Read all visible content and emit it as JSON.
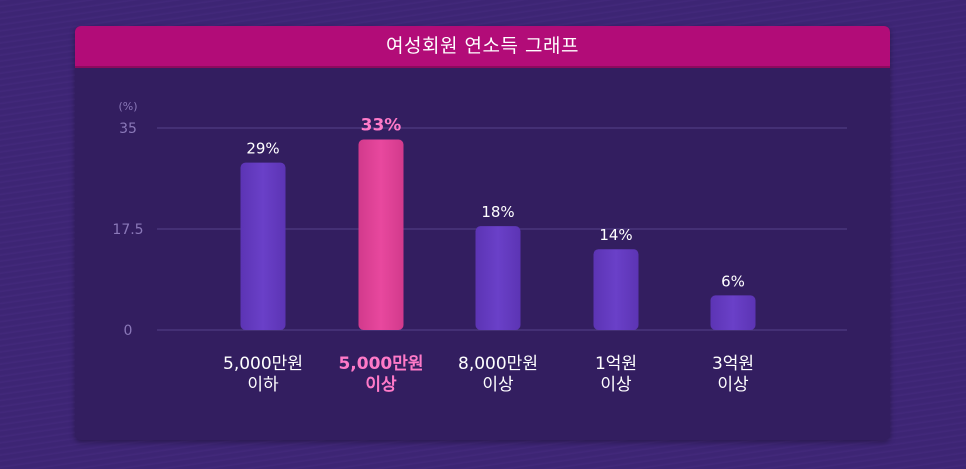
{
  "chart_data": {
    "type": "bar",
    "title": "여성회원 연소득 그래프",
    "unit": "(%)",
    "yticks": [
      "35",
      "17.5",
      "0"
    ],
    "ylim": [
      0,
      35
    ],
    "grid": true,
    "categories": [
      [
        "5,000만원",
        "이하"
      ],
      [
        "5,000만원",
        "이상"
      ],
      [
        "8,000만원",
        "이상"
      ],
      [
        "1억원",
        "이상"
      ],
      [
        "3억원",
        "이상"
      ]
    ],
    "values": [
      29,
      33,
      18,
      14,
      6
    ],
    "value_labels": [
      "29%",
      "33%",
      "18%",
      "14%",
      "6%"
    ],
    "highlight_index": 1,
    "colors": {
      "bar": "#6a40c8",
      "highlight_bar": "#e8489e",
      "highlight_text": "#ff7ac8",
      "header": "#b20c78"
    }
  }
}
